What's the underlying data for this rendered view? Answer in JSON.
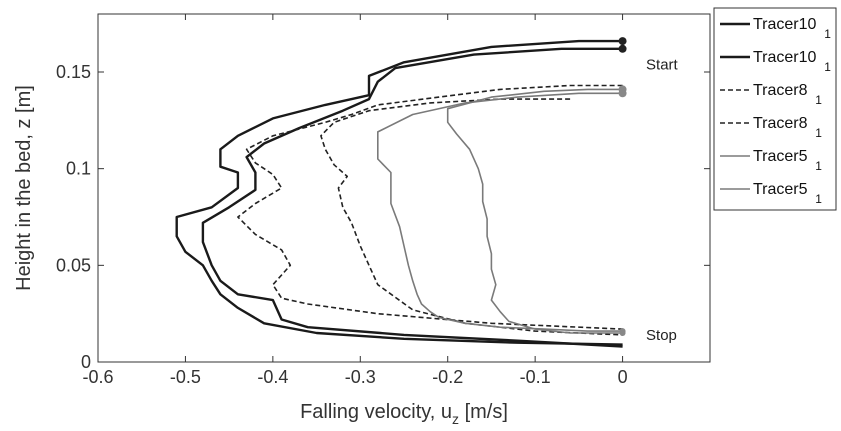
{
  "chart_data": {
    "type": "line",
    "xlabel": "Falling velocity, u",
    "xlabel_sub": "z",
    "xlabel_unit": " [m/s]",
    "ylabel": "Height in the bed, z [m]",
    "xlim": [
      -0.6,
      0.1
    ],
    "ylim": [
      0,
      0.18
    ],
    "xticks": [
      -0.6,
      -0.5,
      -0.4,
      -0.3,
      -0.2,
      -0.1,
      0
    ],
    "xtick_labels": [
      "-0.6",
      "-0.5",
      "-0.4",
      "-0.3",
      "-0.2",
      "-0.1",
      "0"
    ],
    "yticks": [
      0,
      0.05,
      0.1,
      0.15
    ],
    "ytick_labels": [
      "0",
      "0.05",
      "0.1",
      "0.15"
    ],
    "grid": false,
    "legend_position": "outside-right",
    "annotations": [
      {
        "text": "Start",
        "x": 0.02,
        "y": 0.154
      },
      {
        "text": "Stop",
        "x": 0.02,
        "y": 0.014
      }
    ],
    "series": [
      {
        "name": "Tracer10",
        "sub": "1",
        "color": "#1a1a1a",
        "style": "solid",
        "width": 2.4,
        "x": [
          0.0,
          -0.05,
          -0.15,
          -0.25,
          -0.29,
          -0.29,
          -0.34,
          -0.4,
          -0.44,
          -0.46,
          -0.46,
          -0.44,
          -0.44,
          -0.47,
          -0.51,
          -0.51,
          -0.5,
          -0.48,
          -0.47,
          -0.46,
          -0.44,
          -0.41,
          -0.35,
          -0.25,
          -0.12,
          0.0
        ],
        "y": [
          0.166,
          0.166,
          0.163,
          0.155,
          0.148,
          0.138,
          0.133,
          0.126,
          0.117,
          0.11,
          0.101,
          0.098,
          0.09,
          0.08,
          0.075,
          0.065,
          0.057,
          0.05,
          0.042,
          0.035,
          0.028,
          0.02,
          0.015,
          0.012,
          0.01,
          0.009
        ]
      },
      {
        "name": "Tracer10",
        "sub": "1",
        "color": "#1a1a1a",
        "style": "solid",
        "width": 2.4,
        "x": [
          0.0,
          -0.07,
          -0.17,
          -0.26,
          -0.28,
          -0.29,
          -0.32,
          -0.37,
          -0.41,
          -0.43,
          -0.42,
          -0.42,
          -0.45,
          -0.48,
          -0.48,
          -0.47,
          -0.46,
          -0.44,
          -0.4,
          -0.39,
          -0.36,
          -0.25,
          -0.12,
          0.0
        ],
        "y": [
          0.162,
          0.162,
          0.159,
          0.152,
          0.145,
          0.136,
          0.13,
          0.121,
          0.113,
          0.106,
          0.098,
          0.089,
          0.08,
          0.072,
          0.062,
          0.05,
          0.042,
          0.035,
          0.032,
          0.022,
          0.018,
          0.014,
          0.011,
          0.008
        ]
      },
      {
        "name": "Tracer8",
        "sub": "1",
        "color": "#222222",
        "style": "dashed",
        "width": 1.6,
        "x": [
          0.0,
          -0.06,
          -0.14,
          -0.21,
          -0.28,
          -0.31,
          -0.34,
          -0.4,
          -0.43,
          -0.42,
          -0.4,
          -0.39,
          -0.42,
          -0.44,
          -0.42,
          -0.39,
          -0.38,
          -0.4,
          -0.39,
          -0.36,
          -0.28,
          -0.15,
          0.0
        ],
        "y": [
          0.143,
          0.143,
          0.141,
          0.137,
          0.133,
          0.128,
          0.124,
          0.117,
          0.11,
          0.103,
          0.097,
          0.09,
          0.082,
          0.075,
          0.066,
          0.058,
          0.05,
          0.04,
          0.033,
          0.03,
          0.025,
          0.02,
          0.017
        ]
      },
      {
        "name": "Tracer8",
        "sub": "1",
        "color": "#222222",
        "style": "dashed",
        "width": 1.6,
        "x": [
          -0.06,
          -0.14,
          -0.22,
          -0.29,
          -0.33,
          -0.345,
          -0.34,
          -0.33,
          -0.315,
          -0.325,
          -0.32,
          -0.31,
          -0.3,
          -0.29,
          -0.28,
          -0.24,
          -0.18,
          -0.1,
          0.0
        ],
        "y": [
          0.136,
          0.136,
          0.134,
          0.13,
          0.124,
          0.117,
          0.11,
          0.102,
          0.096,
          0.09,
          0.08,
          0.072,
          0.06,
          0.05,
          0.04,
          0.027,
          0.02,
          0.016,
          0.014
        ]
      },
      {
        "name": "Tracer5",
        "sub": "1",
        "color": "#7a7a7a",
        "style": "solid",
        "width": 1.6,
        "x": [
          0.0,
          -0.05,
          -0.12,
          -0.18,
          -0.24,
          -0.28,
          -0.28,
          -0.28,
          -0.265,
          -0.265,
          -0.265,
          -0.255,
          -0.25,
          -0.245,
          -0.24,
          -0.235,
          -0.23,
          -0.22,
          -0.21,
          -0.18,
          -0.14,
          -0.09,
          -0.04,
          0.0
        ],
        "y": [
          0.139,
          0.139,
          0.137,
          0.134,
          0.128,
          0.119,
          0.112,
          0.105,
          0.098,
          0.09,
          0.082,
          0.07,
          0.06,
          0.05,
          0.042,
          0.035,
          0.03,
          0.026,
          0.023,
          0.02,
          0.018,
          0.017,
          0.016,
          0.016
        ]
      },
      {
        "name": "Tracer5",
        "sub": "1",
        "color": "#7a7a7a",
        "style": "solid",
        "width": 1.6,
        "x": [
          0.0,
          -0.04,
          -0.09,
          -0.15,
          -0.2,
          -0.2,
          -0.19,
          -0.175,
          -0.165,
          -0.16,
          -0.16,
          -0.155,
          -0.155,
          -0.15,
          -0.15,
          -0.145,
          -0.15,
          -0.14,
          -0.13,
          -0.1,
          -0.06,
          0.0
        ],
        "y": [
          0.141,
          0.141,
          0.14,
          0.137,
          0.131,
          0.124,
          0.118,
          0.11,
          0.1,
          0.092,
          0.083,
          0.074,
          0.065,
          0.056,
          0.048,
          0.04,
          0.032,
          0.026,
          0.021,
          0.017,
          0.015,
          0.015
        ]
      }
    ]
  }
}
